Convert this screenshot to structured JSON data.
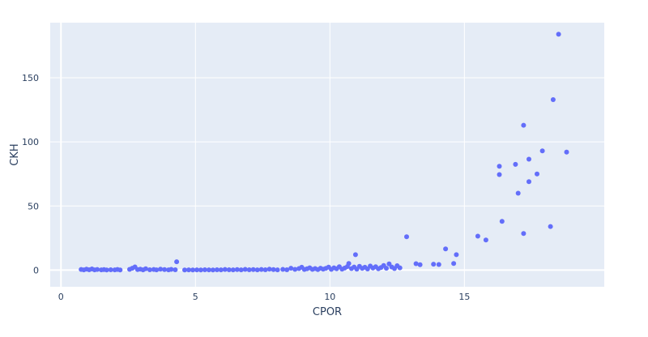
{
  "chart_data": {
    "type": "scatter",
    "xlabel": "CPOR",
    "ylabel": "CKH",
    "xlim": [
      -0.4,
      20.2
    ],
    "ylim": [
      -13,
      193
    ],
    "grid": true,
    "legend": "none",
    "colors": {
      "plot_bg": "#e5ecf6",
      "grid": "#ffffff",
      "marker": "#636efa",
      "text": "#2a3f5f"
    },
    "xticks": [
      0,
      5,
      10,
      15
    ],
    "yticks": [
      0,
      50,
      100,
      150
    ],
    "series": [
      {
        "points": [
          [
            0.75,
            0.5
          ],
          [
            0.85,
            0.2
          ],
          [
            0.95,
            0.7
          ],
          [
            1.05,
            0.3
          ],
          [
            1.15,
            0.9
          ],
          [
            1.25,
            0.2
          ],
          [
            1.35,
            0.5
          ],
          [
            1.5,
            0.2
          ],
          [
            1.6,
            0.4
          ],
          [
            1.7,
            0.1
          ],
          [
            1.85,
            0.3
          ],
          [
            2.0,
            0.2
          ],
          [
            2.1,
            0.5
          ],
          [
            2.2,
            0.1
          ],
          [
            2.55,
            0.6
          ],
          [
            2.65,
            1.5
          ],
          [
            2.75,
            2.5
          ],
          [
            2.85,
            0.4
          ],
          [
            2.95,
            0.8
          ],
          [
            3.05,
            0.2
          ],
          [
            3.15,
            1.0
          ],
          [
            3.3,
            0.3
          ],
          [
            3.45,
            0.5
          ],
          [
            3.55,
            0.2
          ],
          [
            3.7,
            0.8
          ],
          [
            3.85,
            0.4
          ],
          [
            4.0,
            0.2
          ],
          [
            4.1,
            0.6
          ],
          [
            4.25,
            0.3
          ],
          [
            4.3,
            6.5
          ],
          [
            4.6,
            0.1
          ],
          [
            4.75,
            0.2
          ],
          [
            4.9,
            0.1
          ],
          [
            5.05,
            0.2
          ],
          [
            5.2,
            0.1
          ],
          [
            5.35,
            0.3
          ],
          [
            5.5,
            0.2
          ],
          [
            5.65,
            0.1
          ],
          [
            5.8,
            0.3
          ],
          [
            5.95,
            0.2
          ],
          [
            6.1,
            0.5
          ],
          [
            6.25,
            0.3
          ],
          [
            6.4,
            0.2
          ],
          [
            6.55,
            0.4
          ],
          [
            6.7,
            0.2
          ],
          [
            6.85,
            0.6
          ],
          [
            7.0,
            0.3
          ],
          [
            7.15,
            0.4
          ],
          [
            7.3,
            0.2
          ],
          [
            7.45,
            0.5
          ],
          [
            7.6,
            0.3
          ],
          [
            7.75,
            0.8
          ],
          [
            7.9,
            0.4
          ],
          [
            8.05,
            0.2
          ],
          [
            8.25,
            0.6
          ],
          [
            8.4,
            0.3
          ],
          [
            8.55,
            1.5
          ],
          [
            8.7,
            0.6
          ],
          [
            8.85,
            1.2
          ],
          [
            8.95,
            2.2
          ],
          [
            9.05,
            0.5
          ],
          [
            9.15,
            1.0
          ],
          [
            9.25,
            1.8
          ],
          [
            9.35,
            0.6
          ],
          [
            9.45,
            1.2
          ],
          [
            9.55,
            0.4
          ],
          [
            9.65,
            1.5
          ],
          [
            9.75,
            0.7
          ],
          [
            9.85,
            1.4
          ],
          [
            9.95,
            2.3
          ],
          [
            10.05,
            0.6
          ],
          [
            10.15,
            1.8
          ],
          [
            10.25,
            1.0
          ],
          [
            10.35,
            2.6
          ],
          [
            10.45,
            0.8
          ],
          [
            10.55,
            1.6
          ],
          [
            10.65,
            2.8
          ],
          [
            10.7,
            5.2
          ],
          [
            10.8,
            1.2
          ],
          [
            10.9,
            2.4
          ],
          [
            10.95,
            12.0
          ],
          [
            11.0,
            0.8
          ],
          [
            11.1,
            3.0
          ],
          [
            11.2,
            1.4
          ],
          [
            11.3,
            2.2
          ],
          [
            11.4,
            0.9
          ],
          [
            11.5,
            3.2
          ],
          [
            11.6,
            1.6
          ],
          [
            11.7,
            2.6
          ],
          [
            11.8,
            1.0
          ],
          [
            11.9,
            2.0
          ],
          [
            12.0,
            3.6
          ],
          [
            12.1,
            1.5
          ],
          [
            12.2,
            4.8
          ],
          [
            12.3,
            2.4
          ],
          [
            12.4,
            1.2
          ],
          [
            12.5,
            3.4
          ],
          [
            12.6,
            1.8
          ],
          [
            12.85,
            26.0
          ],
          [
            13.2,
            5.0
          ],
          [
            13.35,
            4.2
          ],
          [
            13.85,
            4.6
          ],
          [
            14.05,
            4.4
          ],
          [
            14.3,
            16.5
          ],
          [
            14.6,
            5.2
          ],
          [
            14.7,
            12.0
          ],
          [
            15.5,
            26.5
          ],
          [
            15.8,
            23.5
          ],
          [
            16.3,
            81.0
          ],
          [
            16.3,
            74.5
          ],
          [
            16.4,
            38.0
          ],
          [
            16.9,
            82.5
          ],
          [
            17.0,
            60.0
          ],
          [
            17.2,
            113.0
          ],
          [
            17.2,
            28.5
          ],
          [
            17.4,
            86.5
          ],
          [
            17.4,
            69.0
          ],
          [
            17.7,
            75.0
          ],
          [
            17.9,
            93.0
          ],
          [
            18.2,
            34.0
          ],
          [
            18.3,
            133.0
          ],
          [
            18.5,
            184.0
          ],
          [
            18.8,
            92.0
          ]
        ]
      }
    ]
  }
}
